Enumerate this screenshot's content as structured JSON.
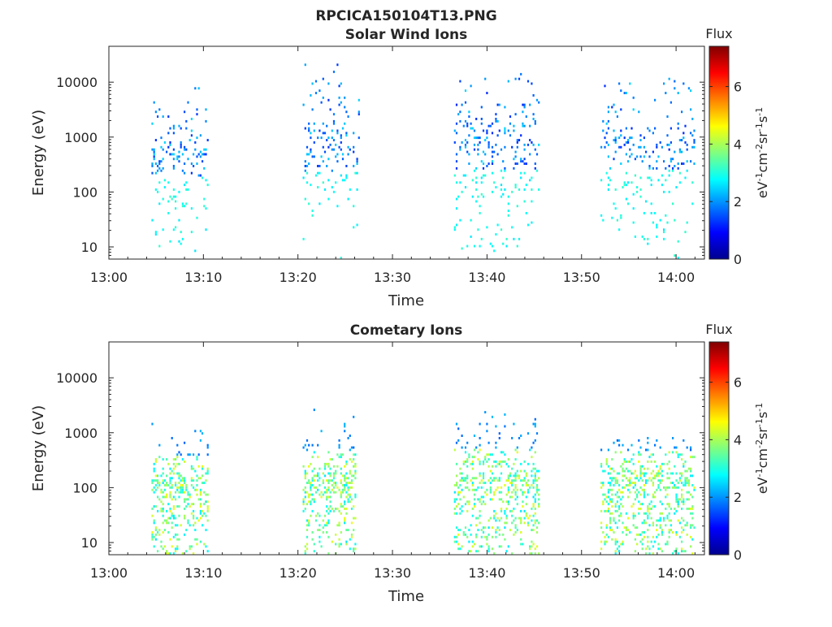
{
  "figure_title": "RPCICA150104T13.PNG",
  "colorbar": {
    "label": "Flux",
    "unit_main": "eV",
    "unit_parts": [
      {
        "t": "eV",
        "sup": false
      },
      {
        "t": "-1",
        "sup": true
      },
      {
        "t": "cm",
        "sup": false
      },
      {
        "t": "-2",
        "sup": true
      },
      {
        "t": "sr",
        "sup": false
      },
      {
        "t": "-1",
        "sup": true
      },
      {
        "t": "s",
        "sup": false
      },
      {
        "t": "-1",
        "sup": true
      }
    ],
    "range": [
      0,
      7.4
    ],
    "ticks": [
      0,
      2,
      4,
      6
    ],
    "colormap": "jet"
  },
  "chart_data": [
    {
      "type": "heatmap",
      "title": "Solar Wind Ions",
      "xlabel": "Time",
      "ylabel": "Energy (eV)",
      "x_range_min": [
        0,
        63
      ],
      "x_ticks_min": [
        0,
        10,
        20,
        30,
        40,
        50,
        60
      ],
      "x_tick_labels": [
        "13:00",
        "13:10",
        "13:20",
        "13:30",
        "13:40",
        "13:50",
        "14:00"
      ],
      "y_scale": "log",
      "y_range": [
        6,
        45000
      ],
      "y_ticks": [
        10,
        100,
        1000,
        10000
      ],
      "y_tick_labels": [
        "10",
        "100",
        "1000",
        "10000"
      ],
      "bursts": [
        {
          "x_min": [
            4.5,
            10.5
          ],
          "peak_eV": 500,
          "max_eV": 9000
        },
        {
          "x_min": [
            20.5,
            26.5
          ],
          "peak_eV": 600,
          "max_eV": 28000
        },
        {
          "x_min": [
            36.5,
            45.5
          ],
          "peak_eV": 700,
          "max_eV": 15000
        },
        {
          "x_min": [
            52,
            62
          ],
          "peak_eV": 700,
          "max_eV": 14000
        }
      ]
    },
    {
      "type": "heatmap",
      "title": "Cometary Ions",
      "xlabel": "Time",
      "ylabel": "Energy (eV)",
      "x_range_min": [
        0,
        63
      ],
      "x_ticks_min": [
        0,
        10,
        20,
        30,
        40,
        50,
        60
      ],
      "x_tick_labels": [
        "13:00",
        "13:10",
        "13:20",
        "13:30",
        "13:40",
        "13:50",
        "14:00"
      ],
      "y_scale": "log",
      "y_range": [
        6,
        45000
      ],
      "y_ticks": [
        10,
        100,
        1000,
        10000
      ],
      "y_tick_labels": [
        "10",
        "100",
        "1000",
        "10000"
      ],
      "bursts": [
        {
          "x_min": [
            4.5,
            10.5
          ],
          "peak_eV": 100,
          "max_eV": 1600
        },
        {
          "x_min": [
            20.5,
            26
          ],
          "peak_eV": 120,
          "max_eV": 3400
        },
        {
          "x_min": [
            36.5,
            45.5
          ],
          "peak_eV": 130,
          "max_eV": 3500
        },
        {
          "x_min": [
            52,
            62
          ],
          "peak_eV": 120,
          "max_eV": 1000
        }
      ]
    }
  ]
}
